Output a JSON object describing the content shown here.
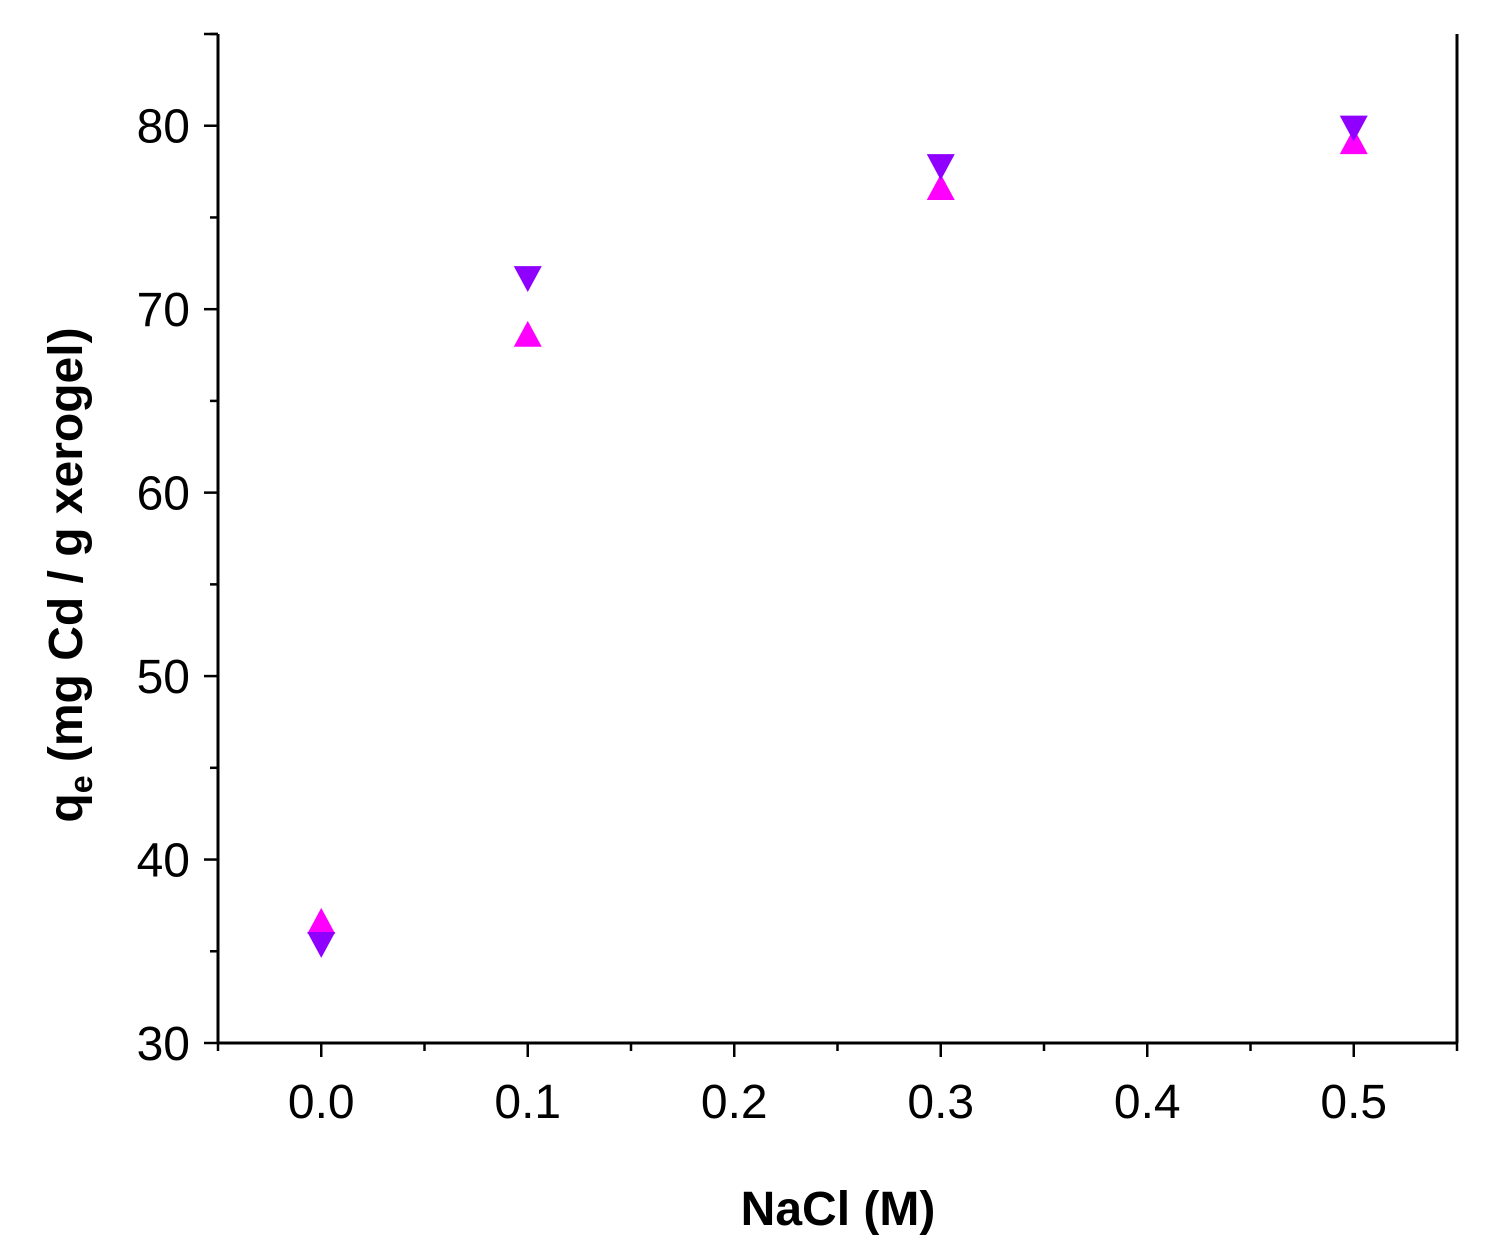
{
  "chart_data": {
    "type": "scatter",
    "xlabel": "NaCl (M)",
    "ylabel_main": "q",
    "ylabel_sub": "e",
    "ylabel_rest": " (mg Cd / g xerogel)",
    "xlim": [
      -0.05,
      0.55
    ],
    "ylim": [
      30,
      85
    ],
    "x_ticks": [
      0.0,
      0.1,
      0.2,
      0.3,
      0.4,
      0.5
    ],
    "x_tick_labels": [
      "0.0",
      "0.1",
      "0.2",
      "0.3",
      "0.4",
      "0.5"
    ],
    "y_ticks": [
      30,
      40,
      50,
      60,
      70,
      80
    ],
    "y_tick_labels": [
      "30",
      "40",
      "50",
      "60",
      "70",
      "80"
    ],
    "grid": false,
    "series": [
      {
        "marker": "triangle-up",
        "color": "#ff00ff",
        "x": [
          0.0,
          0.1,
          0.3,
          0.5
        ],
        "y": [
          36.6,
          68.6,
          76.6,
          79.1
        ]
      },
      {
        "marker": "triangle-down",
        "color": "#8f00ff",
        "x": [
          0.0,
          0.1,
          0.3,
          0.5
        ],
        "y": [
          35.4,
          71.7,
          77.8,
          79.9
        ]
      }
    ]
  }
}
